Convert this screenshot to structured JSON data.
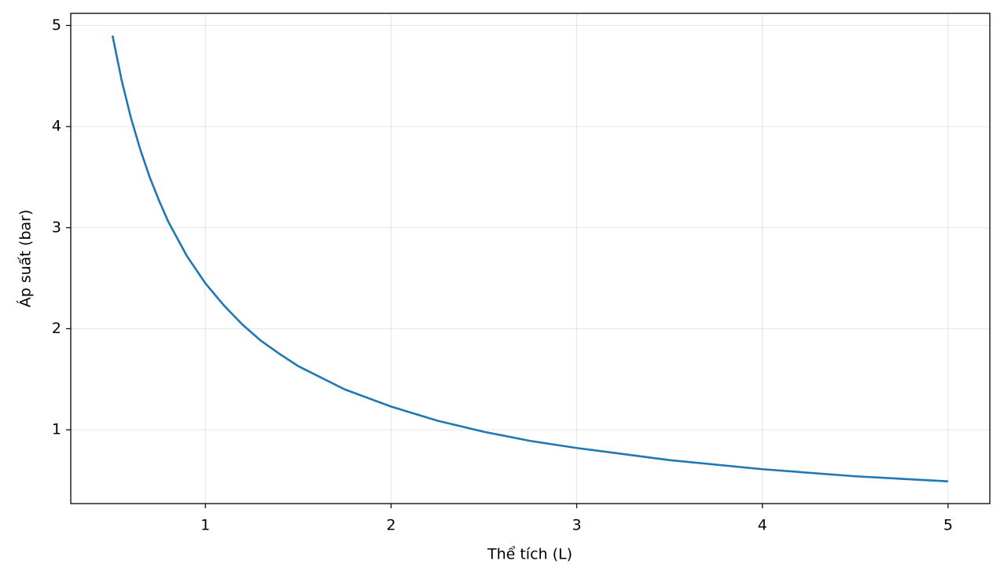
{
  "chart_data": {
    "type": "line",
    "x_label": "Thể tích (L)",
    "y_label": "Áp suất (bar)",
    "x": [
      0.5,
      0.55,
      0.6,
      0.65,
      0.7,
      0.75,
      0.8,
      0.9,
      1,
      1.1,
      1.2,
      1.3,
      1.4,
      1.5,
      1.75,
      2,
      2.25,
      2.5,
      2.75,
      3,
      3.5,
      4,
      4.5,
      5
    ],
    "series": [
      {
        "color": "#1f77b4",
        "values": [
          4.9,
          4.45,
          4.08,
          3.77,
          3.5,
          3.27,
          3.06,
          2.72,
          2.45,
          2.23,
          2.04,
          1.88,
          1.75,
          1.63,
          1.4,
          1.23,
          1.09,
          0.98,
          0.89,
          0.82,
          0.7,
          0.61,
          0.54,
          0.49
        ]
      }
    ],
    "xlim": [
      0.275,
      5.225
    ],
    "xticks": [
      1,
      2,
      3,
      4,
      5
    ],
    "ylim": [
      0.27,
      5.12
    ],
    "yticks": [
      1,
      2,
      3,
      4,
      5
    ],
    "grid": true
  }
}
